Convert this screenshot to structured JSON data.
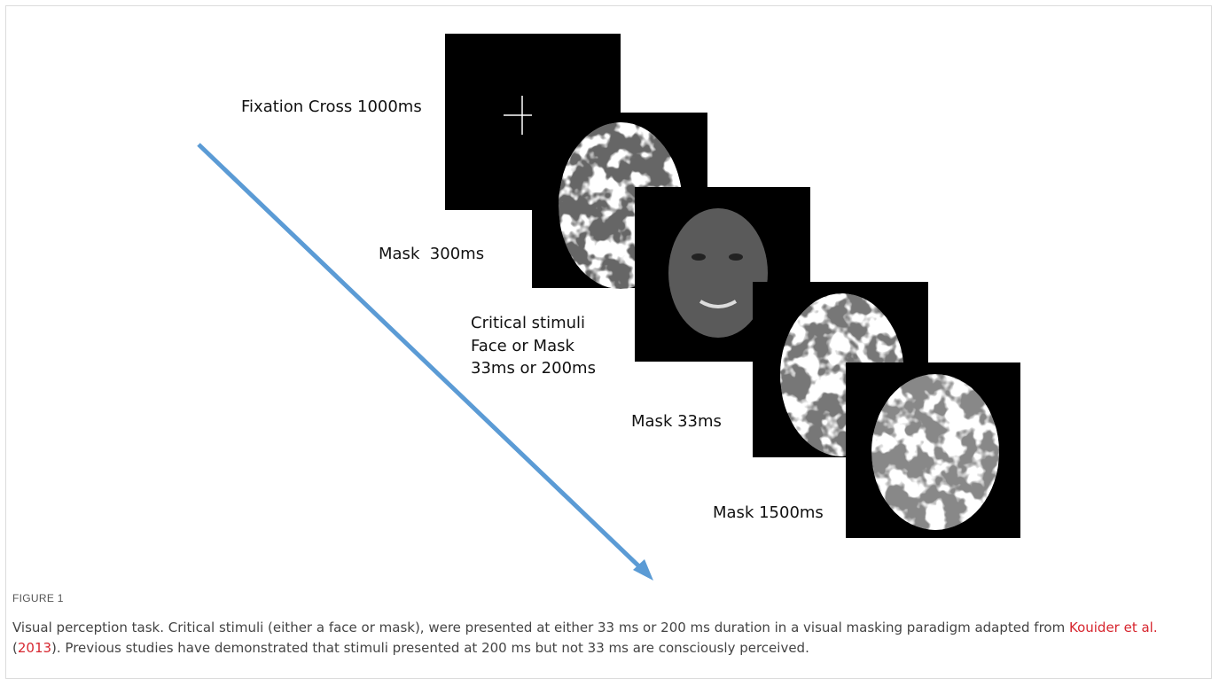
{
  "figure": {
    "labels": [
      "Fixation Cross 1000ms",
      "Mask  300ms",
      "Critical stimuli",
      "Face or Mask",
      "33ms or 200ms",
      "Mask 33ms",
      "Mask 1500ms"
    ],
    "number": "FIGURE 1",
    "caption": [
      "Visual perception task. Critical stimuli (either a face or mask), were presented at either 33 ms or 200 ms duration in a visual masking paradigm adapted from ",
      "Kouider et al.",
      " (",
      "2013",
      "). Previous studies have demonstrated that stimuli presented at 200 ms but not 33 ms are consciously perceived."
    ]
  }
}
